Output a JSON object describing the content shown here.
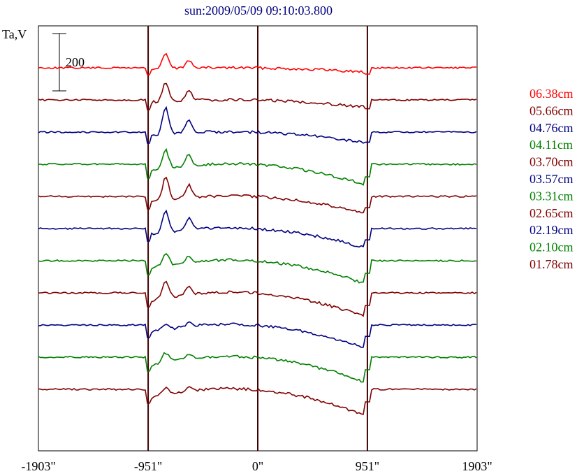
{
  "chart_data": {
    "type": "line",
    "title": "sun:2009/05/09 09:10:03.800",
    "ylabel": "Ta,V",
    "xlabel": "",
    "x_ticks": [
      "-1903\"",
      "-951\"",
      "0\"",
      "951\"",
      "1903\""
    ],
    "x_tick_values": [
      -1903,
      -951,
      0,
      951,
      1903
    ],
    "xlim": [
      -1903,
      1903
    ],
    "vertical_lines": [
      -951,
      0,
      951
    ],
    "scale_bar": {
      "label": "200",
      "value": 200
    },
    "grid": false,
    "legend_placement": "right",
    "series": [
      {
        "name": "06.38cm",
        "color": "#ff0000",
        "offset": 0,
        "amp": 0.18,
        "limb": 10,
        "active": 1.0
      },
      {
        "name": "05.66cm",
        "color": "#800000",
        "offset": 1,
        "amp": 0.3,
        "limb": 14,
        "active": 1.2
      },
      {
        "name": "04.76cm",
        "color": "#000080",
        "offset": 2,
        "amp": 0.45,
        "limb": 16,
        "active": 1.7
      },
      {
        "name": "04.11cm",
        "color": "#008000",
        "offset": 3,
        "amp": 0.85,
        "limb": 20,
        "active": 1.2
      },
      {
        "name": "03.70cm",
        "color": "#800000",
        "offset": 4,
        "amp": 0.7,
        "limb": 18,
        "active": 1.5
      },
      {
        "name": "03.57cm",
        "color": "#000080",
        "offset": 5,
        "amp": 0.8,
        "limb": 18,
        "active": 1.4
      },
      {
        "name": "03.31cm",
        "color": "#008000",
        "offset": 6,
        "amp": 0.95,
        "limb": 20,
        "active": 0.8
      },
      {
        "name": "02.65cm",
        "color": "#800000",
        "offset": 7,
        "amp": 1.0,
        "limb": 20,
        "active": 1.0
      },
      {
        "name": "02.19cm",
        "color": "#000080",
        "offset": 8,
        "amp": 0.95,
        "limb": 18,
        "active": 0.4
      },
      {
        "name": "02.10cm",
        "color": "#008000",
        "offset": 9,
        "amp": 1.05,
        "limb": 20,
        "active": 0.6
      },
      {
        "name": "01.78cm",
        "color": "#800000",
        "offset": 10,
        "amp": 1.1,
        "limb": 20,
        "active": 0.5
      }
    ]
  }
}
